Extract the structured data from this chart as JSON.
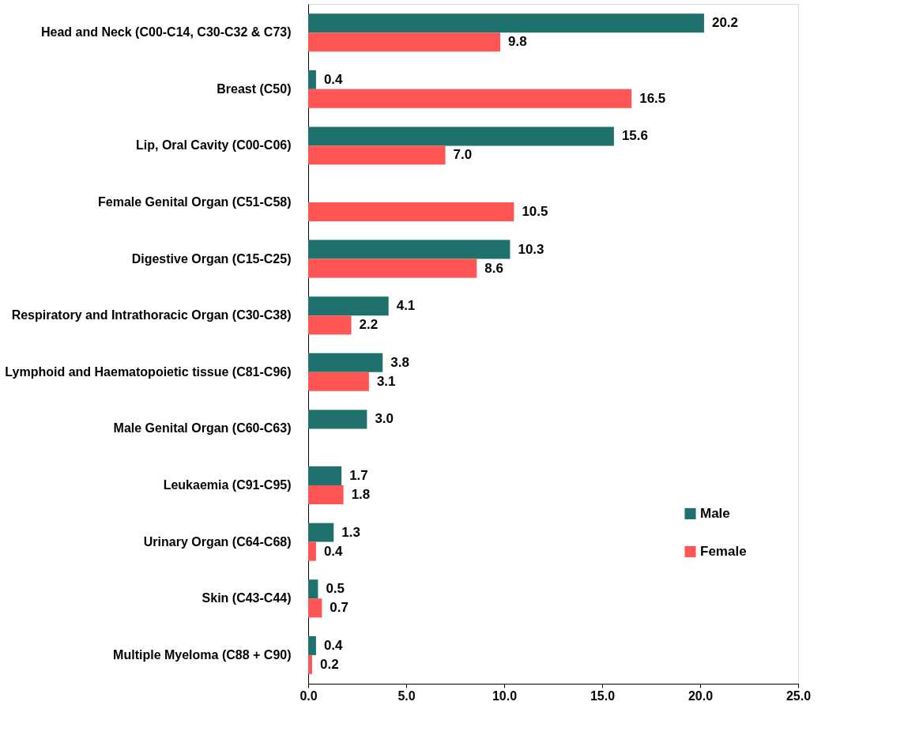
{
  "chart_data": {
    "type": "bar",
    "orientation": "horizontal",
    "categories": [
      "Head and Neck (C00-C14, C30-C32  & C73)",
      "Breast (C50)",
      "Lip, Oral Cavity (C00-C06)",
      "Female Genital Organ (C51-C58)",
      "Digestive Organ (C15-C25)",
      "Respiratory and Intrathoracic Organ (C30-C38)",
      "Lymphoid and Haematopoietic tissue (C81-C96)",
      "Male Genital Organ (C60-C63)",
      "Leukaemia (C91-C95)",
      "Urinary Organ (C64-C68)",
      "Skin (C43-C44)",
      "Multiple Myeloma (C88 + C90)"
    ],
    "series": [
      {
        "name": "Male",
        "color": "#1e716c",
        "values": [
          20.2,
          0.4,
          15.6,
          null,
          10.3,
          4.1,
          3.8,
          3.0,
          1.7,
          1.3,
          0.5,
          0.4
        ],
        "value_labels": [
          "20.2",
          "0.4",
          "15.6",
          null,
          "10.3",
          "4.1",
          "3.8",
          "3.0",
          "1.7",
          "1.3",
          "0.5",
          "0.4"
        ]
      },
      {
        "name": "Female",
        "color": "#ff5555",
        "values": [
          9.8,
          16.5,
          7.0,
          10.5,
          8.6,
          2.2,
          3.1,
          null,
          1.8,
          0.4,
          0.7,
          0.2
        ],
        "value_labels": [
          "9.8",
          "16.5",
          "7.0",
          "10.5",
          "8.6",
          "2.2",
          "3.1",
          null,
          "1.8",
          "0.4",
          "0.7",
          "0.2"
        ]
      }
    ],
    "xlim": [
      0,
      25
    ],
    "xticks": [
      {
        "value": 0,
        "label": "0.0"
      },
      {
        "value": 5,
        "label": "5.0"
      },
      {
        "value": 10,
        "label": "10.0"
      },
      {
        "value": 15,
        "label": "15.0"
      },
      {
        "value": 20,
        "label": "20.0"
      },
      {
        "value": 25,
        "label": "25.0"
      }
    ],
    "grid": false,
    "legend": "right"
  }
}
